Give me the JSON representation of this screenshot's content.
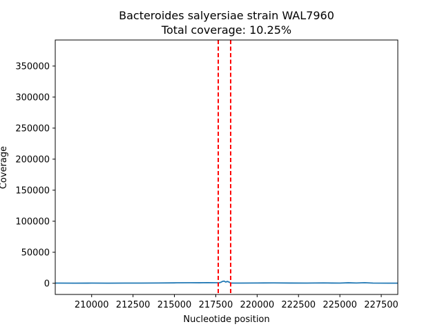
{
  "chart_data": {
    "type": "line",
    "title": "Bacteroides salyersiae strain WAL7960",
    "subtitle": "Total coverage: 10.25%",
    "xlabel": "Nucleotide position",
    "ylabel": "Coverage",
    "xlim": [
      207800,
      228500
    ],
    "ylim": [
      -18000,
      392000
    ],
    "xticks": [
      210000,
      212500,
      215000,
      217500,
      220000,
      222500,
      225000,
      227500
    ],
    "yticks": [
      0,
      50000,
      100000,
      150000,
      200000,
      250000,
      300000,
      350000
    ],
    "grid": false,
    "series": [
      {
        "color": "#1f77b4",
        "x": [
          207800,
          209000,
          210000,
          211000,
          212000,
          213000,
          214000,
          215000,
          216000,
          216500,
          217000,
          217500,
          217700,
          217800,
          217900,
          218000,
          218100,
          218200,
          218300,
          218400,
          218500,
          219000,
          220000,
          221000,
          222000,
          223000,
          224000,
          224500,
          225000,
          225500,
          226000,
          226500,
          227000,
          228000,
          228500
        ],
        "y": [
          300,
          200,
          300,
          200,
          300,
          300,
          500,
          700,
          900,
          800,
          1000,
          900,
          700,
          1500,
          3000,
          3500,
          2000,
          3000,
          2000,
          500,
          400,
          300,
          500,
          600,
          400,
          300,
          600,
          400,
          300,
          800,
          500,
          900,
          300,
          200,
          200
        ]
      }
    ],
    "vlines": [
      {
        "x": 217650,
        "color": "#ff0000",
        "style": "dashed"
      },
      {
        "x": 218400,
        "color": "#ff0000",
        "style": "dashed"
      }
    ]
  }
}
